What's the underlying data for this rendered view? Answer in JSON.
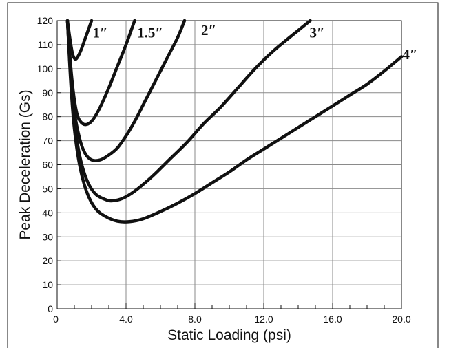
{
  "chart_data": {
    "type": "line",
    "title": "",
    "xlabel": "Static Loading (psi)",
    "ylabel": "Peak Deceleration (Gs)",
    "xlim": [
      0,
      20
    ],
    "ylim": [
      0,
      120
    ],
    "x_ticks": [
      "0",
      "4.0",
      "8.0",
      "12.0",
      "16.0",
      "20.0"
    ],
    "y_ticks": [
      "0",
      "10",
      "20",
      "30",
      "40",
      "50",
      "60",
      "70",
      "80",
      "90",
      "100",
      "110",
      "120"
    ],
    "grid": true,
    "series": [
      {
        "name": "1″",
        "x": [
          0.6,
          0.75,
          0.9,
          1.05,
          1.2,
          1.4,
          1.6,
          1.8,
          2.0
        ],
        "y": [
          120,
          112,
          106,
          104,
          105,
          108,
          112,
          116,
          120
        ]
      },
      {
        "name": "1.5″",
        "x": [
          0.6,
          0.8,
          1.0,
          1.2,
          1.5,
          1.8,
          2.1,
          2.5,
          3.0,
          3.5,
          4.0,
          4.5
        ],
        "y": [
          120,
          100,
          87,
          80,
          77,
          77,
          79,
          84,
          92,
          101,
          110,
          120
        ]
      },
      {
        "name": "2″",
        "x": [
          0.6,
          0.8,
          1.0,
          1.3,
          1.6,
          2.0,
          2.5,
          3.0,
          3.5,
          4.0,
          4.5,
          5.0,
          5.5,
          6.0,
          6.5,
          7.0,
          7.4
        ],
        "y": [
          120,
          97,
          82,
          71,
          65,
          62,
          62,
          64,
          67,
          72,
          78,
          85,
          92,
          99,
          106,
          113,
          120
        ]
      },
      {
        "name": "3″",
        "x": [
          0.6,
          0.8,
          1.0,
          1.3,
          1.7,
          2.2,
          2.8,
          3.2,
          3.8,
          4.5,
          5.5,
          6.5,
          7.5,
          8.5,
          9.5,
          10.5,
          11.5,
          12.5,
          13.5,
          14.7
        ],
        "y": [
          120,
          95,
          78,
          64,
          54,
          48,
          45.5,
          45,
          46,
          49,
          55,
          62,
          69,
          77,
          84,
          92,
          100,
          107,
          113,
          120
        ]
      },
      {
        "name": "4″",
        "x": [
          0.6,
          0.8,
          1.0,
          1.3,
          1.7,
          2.2,
          2.8,
          3.5,
          4.2,
          5.0,
          6.0,
          7.0,
          8.0,
          9.0,
          10.0,
          11.0,
          12.0,
          13.0,
          14.0,
          15.0,
          16.0,
          17.0,
          18.0,
          19.0,
          20.0
        ],
        "y": [
          120,
          93,
          75,
          60,
          49,
          42,
          38.5,
          36.5,
          36.3,
          37.5,
          40.5,
          44,
          48,
          52.5,
          57,
          62,
          66.5,
          71,
          75.5,
          80,
          84.5,
          89,
          93.5,
          99,
          105
        ]
      }
    ],
    "labels": [
      {
        "text": "1″",
        "x": 2.5,
        "y": 115
      },
      {
        "text": "1.5″",
        "x": 5.4,
        "y": 115
      },
      {
        "text": "2″",
        "x": 8.8,
        "y": 116
      },
      {
        "text": "3″",
        "x": 15.1,
        "y": 115
      },
      {
        "text": "4″",
        "x": 20.5,
        "y": 106
      }
    ]
  }
}
